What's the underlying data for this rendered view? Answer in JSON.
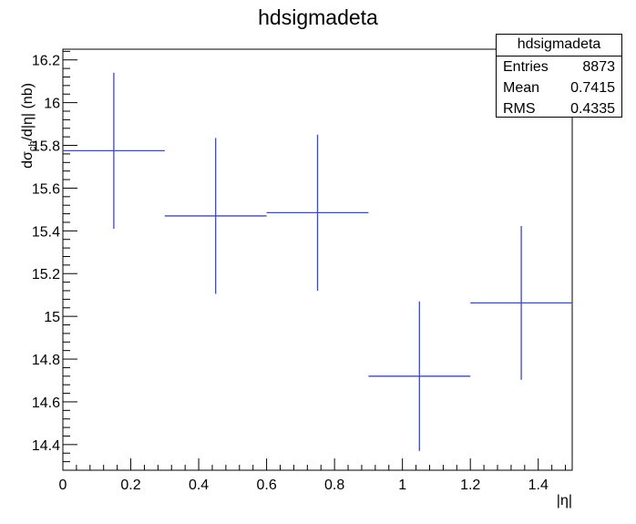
{
  "chart_data": {
    "type": "scatter",
    "title": "hdsigmadeta",
    "xlabel": "|η|",
    "ylabel": "dσ_ch/d|η| (nb)",
    "xlim": [
      0,
      1.5
    ],
    "ylim": [
      14.28,
      16.25
    ],
    "x_ticks": [
      0,
      0.2,
      0.4,
      0.6,
      0.8,
      1,
      1.2,
      1.4
    ],
    "x_tick_labels": [
      "0",
      "0.2",
      "0.4",
      "0.6",
      "0.8",
      "1",
      "1.2",
      "1.4"
    ],
    "y_ticks": [
      14.4,
      14.6,
      14.8,
      15,
      15.2,
      15.4,
      15.6,
      15.8,
      16,
      16.2
    ],
    "y_tick_labels": [
      "14.4",
      "14.6",
      "14.8",
      "15",
      "15.2",
      "15.4",
      "15.6",
      "15.8",
      "16",
      "16.2"
    ],
    "grid": false,
    "legend": "top-right",
    "series": [
      {
        "color": "#3d4ab4",
        "x": [
          0.15,
          0.45,
          0.75,
          1.05,
          1.35
        ],
        "x_err": [
          0.15,
          0.15,
          0.15,
          0.15,
          0.15
        ],
        "y": [
          15.775,
          15.47,
          15.485,
          14.72,
          15.063
        ],
        "y_err": [
          0.365,
          0.365,
          0.365,
          0.35,
          0.36
        ]
      }
    ]
  },
  "stats": {
    "title": "hdsigmadeta",
    "rows": [
      {
        "label": "Entries",
        "value": "8873"
      },
      {
        "label": "Mean",
        "value": "0.7415"
      },
      {
        "label": "RMS",
        "value": "0.4335"
      }
    ]
  }
}
